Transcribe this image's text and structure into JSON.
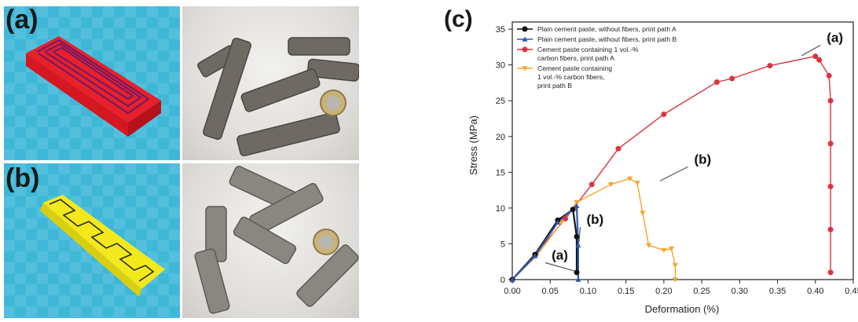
{
  "panels": {
    "a_label": "(a)",
    "b_label": "(b)",
    "c_label": "(c)"
  },
  "chart_data": {
    "type": "line",
    "title": "",
    "xlabel": "Deformation (%)",
    "ylabel": "Stress (MPa)",
    "xlim": [
      0,
      0.45
    ],
    "ylim": [
      0,
      36
    ],
    "x_ticks": [
      "0.00",
      "0.05",
      "0.10",
      "0.15",
      "0.20",
      "0.25",
      "0.30",
      "0.35",
      "0.40",
      "0.45"
    ],
    "y_ticks": [
      "0",
      "5",
      "10",
      "15",
      "20",
      "25",
      "30",
      "35"
    ],
    "grid": false,
    "legend_position": "top-left",
    "series": [
      {
        "name": "Plain cement paste, without fibers, print path A",
        "color": "#111111",
        "marker": "circle",
        "x": [
          0,
          0.03,
          0.06,
          0.08,
          0.085,
          0.085
        ],
        "y": [
          0,
          3.5,
          8.3,
          9.8,
          6,
          1
        ]
      },
      {
        "name": "Plain cement paste, without fibers, print path B",
        "color": "#2f57b5",
        "marker": "triangle-up",
        "x": [
          0,
          0.03,
          0.06,
          0.085,
          0.087,
          0.087
        ],
        "y": [
          0,
          3.3,
          8.0,
          10.3,
          4.8,
          0
        ]
      },
      {
        "name": "Cement paste containing 1 vol.-% carbon fibers, print path A",
        "color": "#d9343f",
        "marker": "circle",
        "x": [
          0,
          0.03,
          0.07,
          0.105,
          0.14,
          0.2,
          0.27,
          0.29,
          0.34,
          0.4,
          0.405,
          0.418,
          0.42,
          0.42,
          0.42,
          0.42,
          0.42
        ],
        "y": [
          0,
          3.5,
          8.5,
          13.3,
          18.3,
          23.1,
          27.6,
          28.1,
          29.9,
          31.2,
          30.7,
          28.5,
          25,
          19,
          13,
          7,
          1
        ]
      },
      {
        "name": "Cement paste containing 1 vol.-% carbon fibers, print path B",
        "color": "#f5a52a",
        "marker": "triangle-down",
        "x": [
          0,
          0.032,
          0.065,
          0.085,
          0.13,
          0.155,
          0.165,
          0.172,
          0.18,
          0.2,
          0.21,
          0.215,
          0.215
        ],
        "y": [
          0,
          3.3,
          8.0,
          10.8,
          13.3,
          14.1,
          13.5,
          9.3,
          4.8,
          4.1,
          4.3,
          2.0,
          0
        ]
      }
    ],
    "annotations": [
      {
        "text": "(a)",
        "x": 0.415,
        "y": 33.2,
        "arrow_to": [
          0.382,
          31.3
        ]
      },
      {
        "text": "(b)",
        "x": 0.24,
        "y": 16.2,
        "arrow_to": [
          0.195,
          13.8
        ]
      },
      {
        "text": "(b)",
        "x": 0.098,
        "y": 7.8,
        "arrow_to": [
          0.088,
          5.2
        ]
      },
      {
        "text": "(a)",
        "x": 0.052,
        "y": 2.8,
        "arrow_to": [
          0.082,
          1.2
        ]
      }
    ],
    "legend_lines": [
      [
        "Plain cement paste, without fibers, print path A"
      ],
      [
        "Plain cement paste, without fibers, print path B"
      ],
      [
        "Cement paste containing 1 vol.-%",
        "carbon fibers, print path A"
      ],
      [
        "Cement paste containing",
        "1 vol.-% carbon fibers,",
        "print path B"
      ]
    ]
  }
}
